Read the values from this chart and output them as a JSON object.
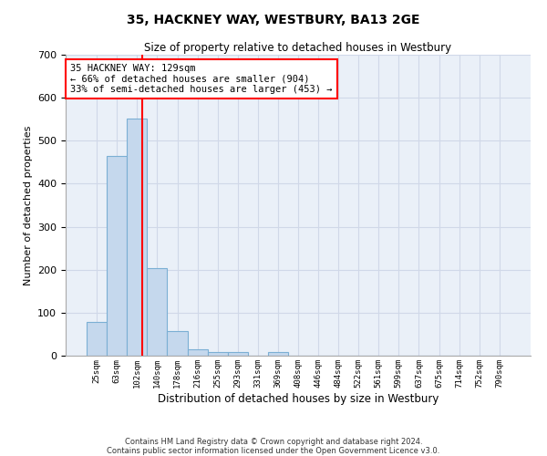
{
  "title": "35, HACKNEY WAY, WESTBURY, BA13 2GE",
  "subtitle": "Size of property relative to detached houses in Westbury",
  "xlabel": "Distribution of detached houses by size in Westbury",
  "ylabel": "Number of detached properties",
  "footnote1": "Contains HM Land Registry data © Crown copyright and database right 2024.",
  "footnote2": "Contains public sector information licensed under the Open Government Licence v3.0.",
  "bar_categories": [
    "25sqm",
    "63sqm",
    "102sqm",
    "140sqm",
    "178sqm",
    "216sqm",
    "255sqm",
    "293sqm",
    "331sqm",
    "369sqm",
    "408sqm",
    "446sqm",
    "484sqm",
    "522sqm",
    "561sqm",
    "599sqm",
    "637sqm",
    "675sqm",
    "714sqm",
    "752sqm",
    "790sqm"
  ],
  "bar_values": [
    78,
    465,
    551,
    204,
    57,
    15,
    9,
    9,
    0,
    8,
    0,
    0,
    0,
    0,
    0,
    0,
    0,
    0,
    0,
    0,
    0
  ],
  "bar_color": "#c5d8ed",
  "bar_edge_color": "#7bafd4",
  "ylim": [
    0,
    700
  ],
  "yticks": [
    0,
    100,
    200,
    300,
    400,
    500,
    600,
    700
  ],
  "annotation_text": "35 HACKNEY WAY: 129sqm\n← 66% of detached houses are smaller (904)\n33% of semi-detached houses are larger (453) →",
  "annotation_box_color": "white",
  "annotation_box_edge_color": "red",
  "vline_color": "red",
  "grid_color": "#d0d8e8",
  "bg_color": "#eaf0f8",
  "bar_width": 1.0,
  "vline_x": 2.237
}
